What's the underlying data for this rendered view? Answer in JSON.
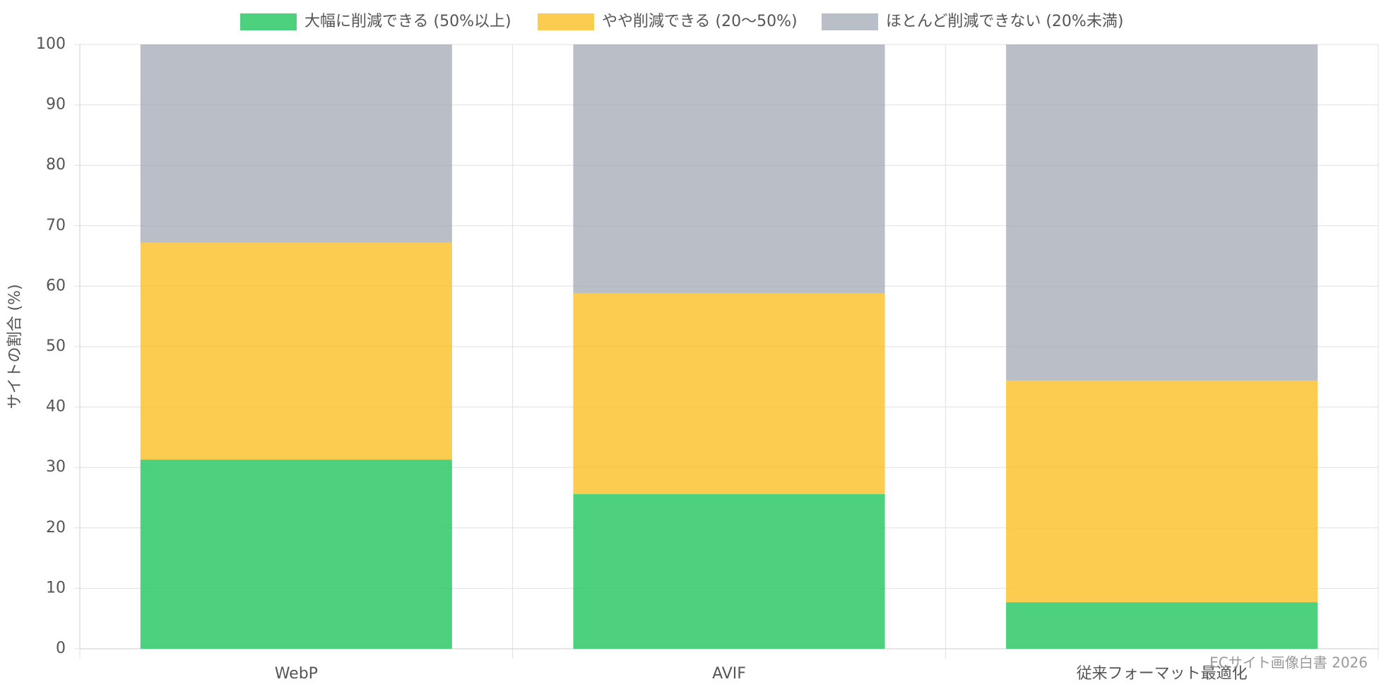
{
  "chart_data": {
    "type": "stacked-bar",
    "y_label": "サイトの割合 (%)",
    "categories": [
      "WebP",
      "AVIF",
      "従来フォーマット最適化"
    ],
    "series": [
      {
        "name": "大幅に削減できる (50%以上)",
        "color": "rgba(34,197,94,0.8)",
        "values": [
          31.3,
          25.6,
          7.7
        ]
      },
      {
        "name": "やや削減できる (20〜50%)",
        "color": "rgba(251,191,36,0.8)",
        "values": [
          35.9,
          33.2,
          36.7
        ]
      },
      {
        "name": "ほとんど削減できない (20%未満)",
        "color": "rgba(156,163,175,0.7)",
        "values": [
          32.8,
          41.2,
          55.6
        ]
      }
    ],
    "ylim": [
      0,
      100
    ],
    "yticks": [
      0,
      10,
      20,
      30,
      40,
      50,
      60,
      70,
      80,
      90,
      100
    ],
    "grid": true,
    "legend": "top",
    "watermark": "ECサイト画像白書 2026"
  }
}
